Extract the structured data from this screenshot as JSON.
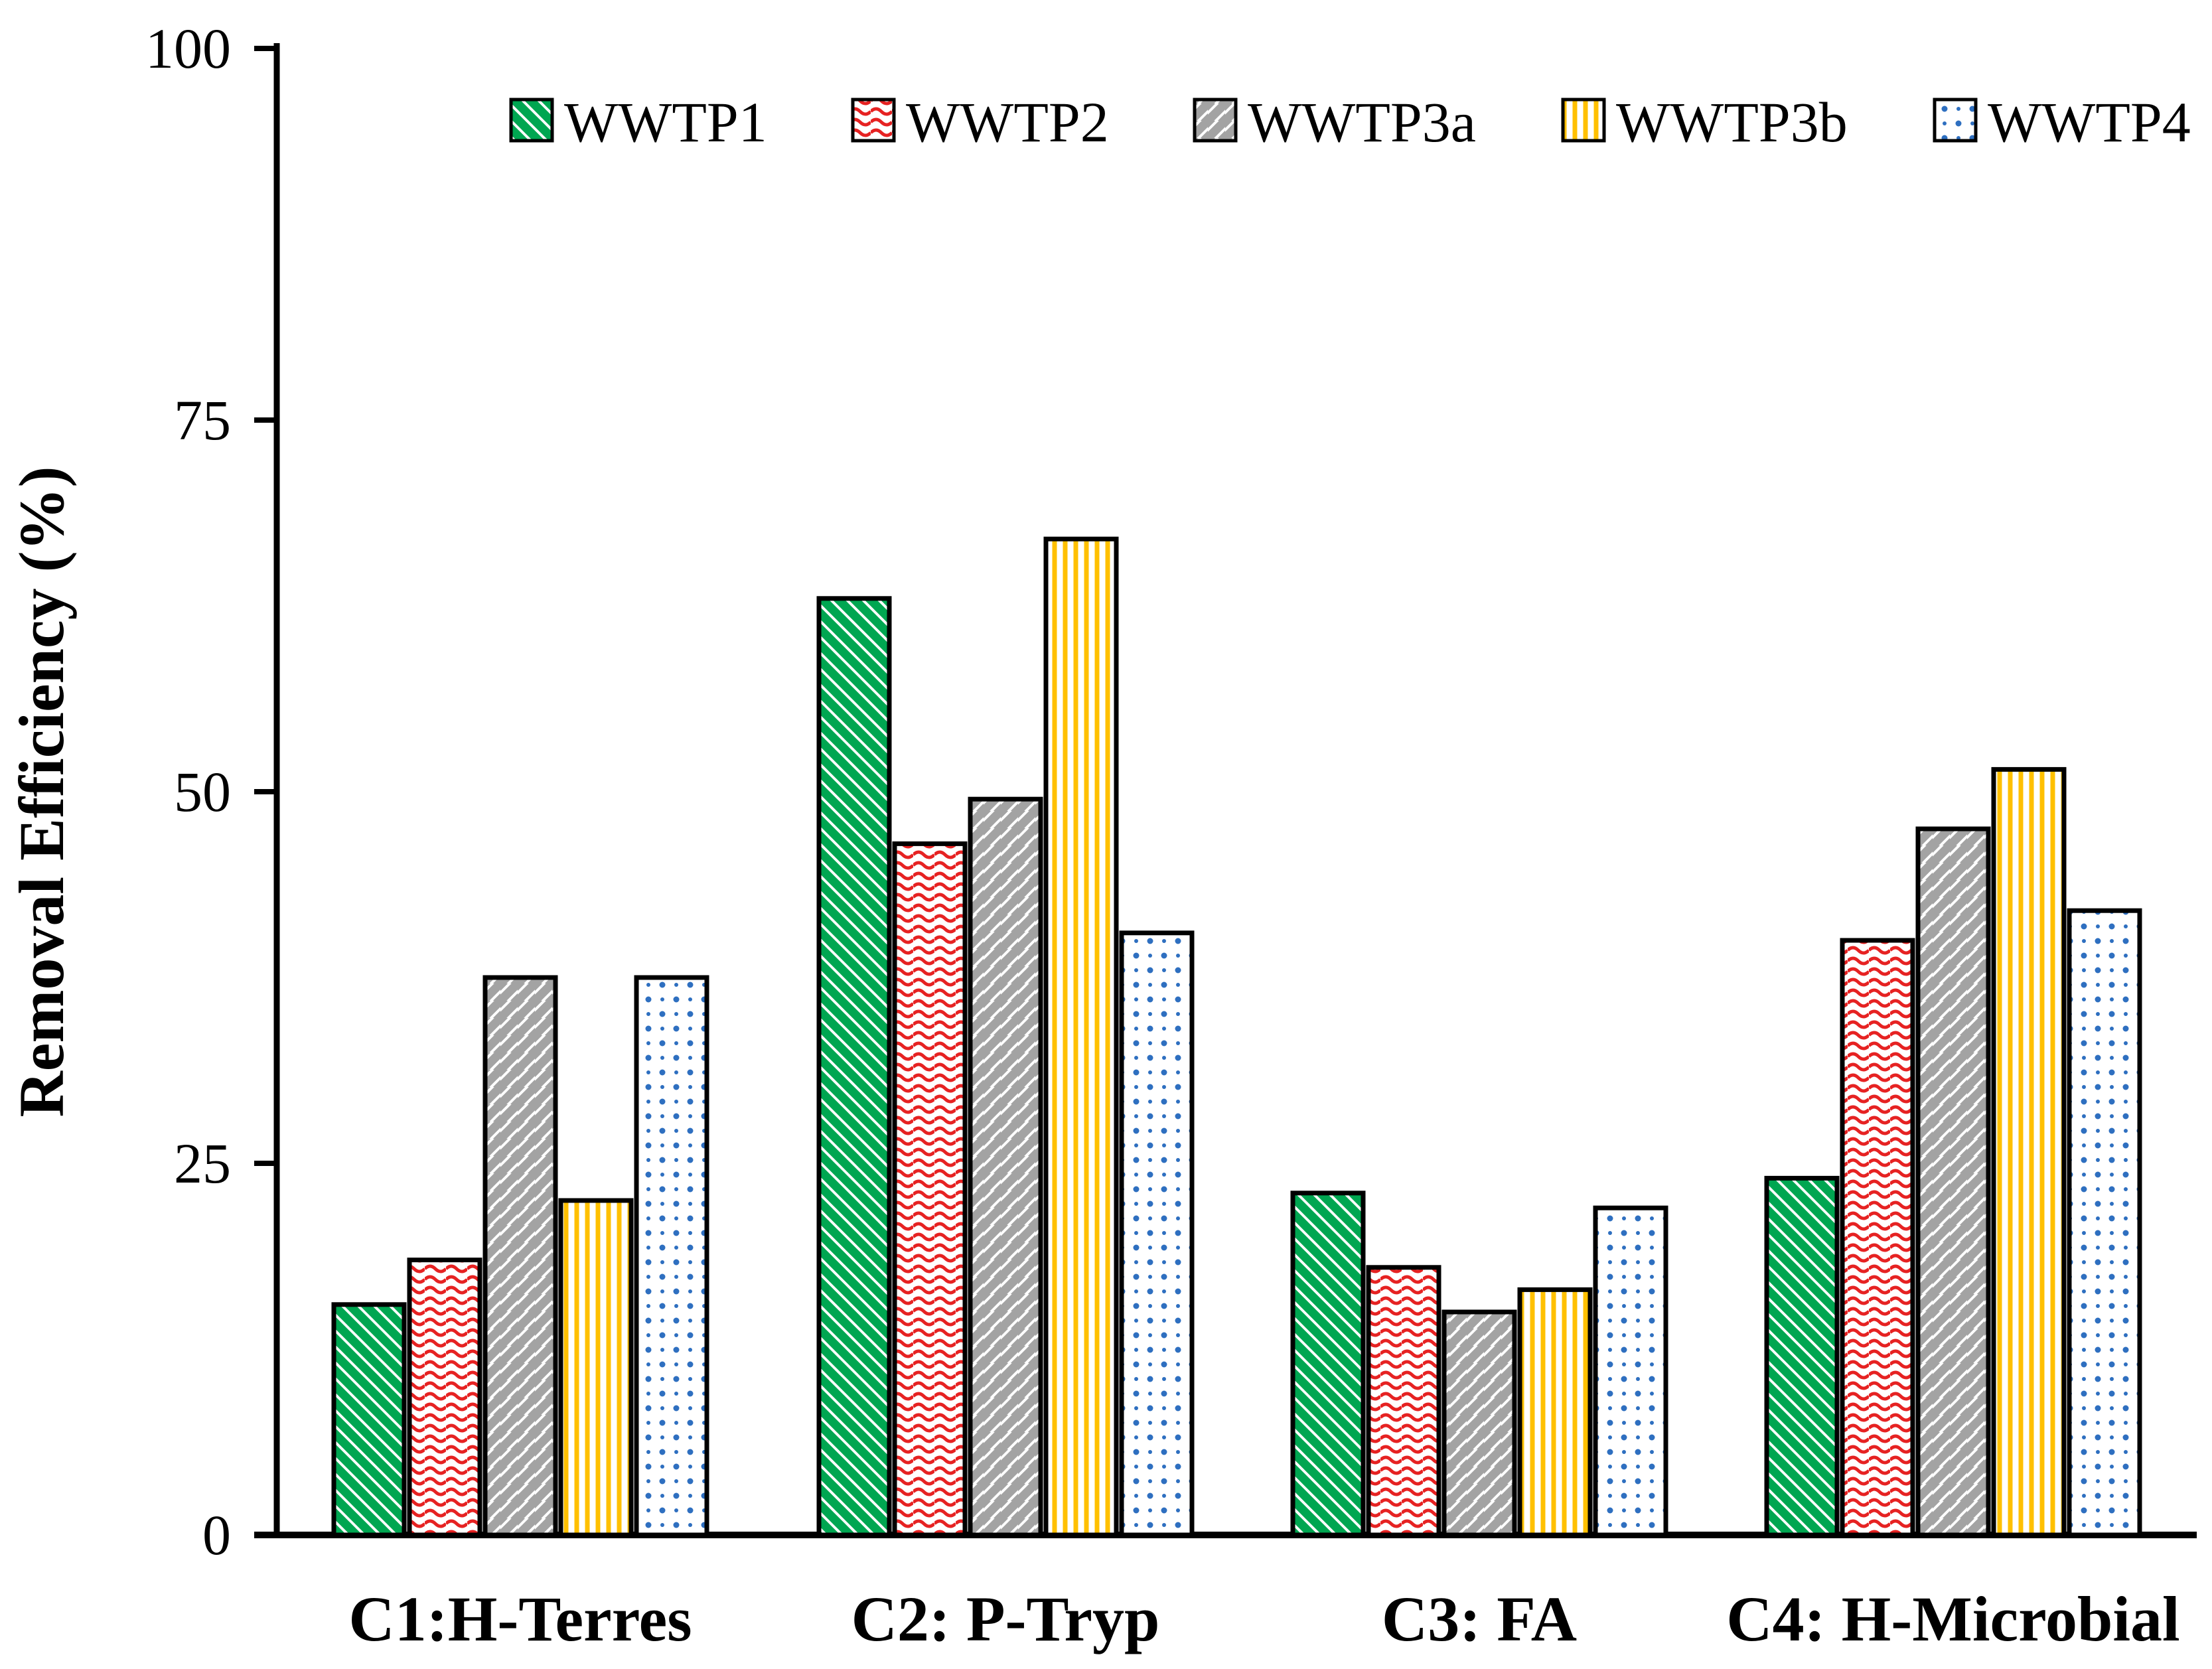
{
  "chart_data": {
    "type": "bar",
    "ylabel": "Removal Efficiency (%)",
    "xlabel": "",
    "ylim": [
      0,
      100
    ],
    "yticks": [
      0,
      25,
      50,
      75,
      100
    ],
    "grid": false,
    "legend_position": "top",
    "categories": [
      "C1:H-Terres",
      "C2: P-Tryp",
      "C3: FA",
      "C4: H-Microbial"
    ],
    "series": [
      {
        "name": "WWTP1",
        "color": "#00A651",
        "pattern": "diagonal-down-stripes",
        "values": [
          15.5,
          63,
          23,
          24
        ]
      },
      {
        "name": "WWTP2",
        "color": "#E62222",
        "pattern": "horizontal-waves",
        "values": [
          18.5,
          46.5,
          18,
          40
        ]
      },
      {
        "name": "WWTP3a",
        "color": "#A3A3A3",
        "pattern": "diagonal-up-stripes",
        "values": [
          37.5,
          49.5,
          15,
          47.5
        ]
      },
      {
        "name": "WWTP3b",
        "color": "#FFC000",
        "pattern": "vertical-stripes",
        "values": [
          22.5,
          67,
          16.5,
          51.5
        ]
      },
      {
        "name": "WWTP4",
        "color": "#2E6FC0",
        "pattern": "dots",
        "values": [
          37.5,
          40.5,
          22,
          42
        ]
      }
    ],
    "axis_color": "#000000",
    "bar_outline_color": "#000000"
  }
}
